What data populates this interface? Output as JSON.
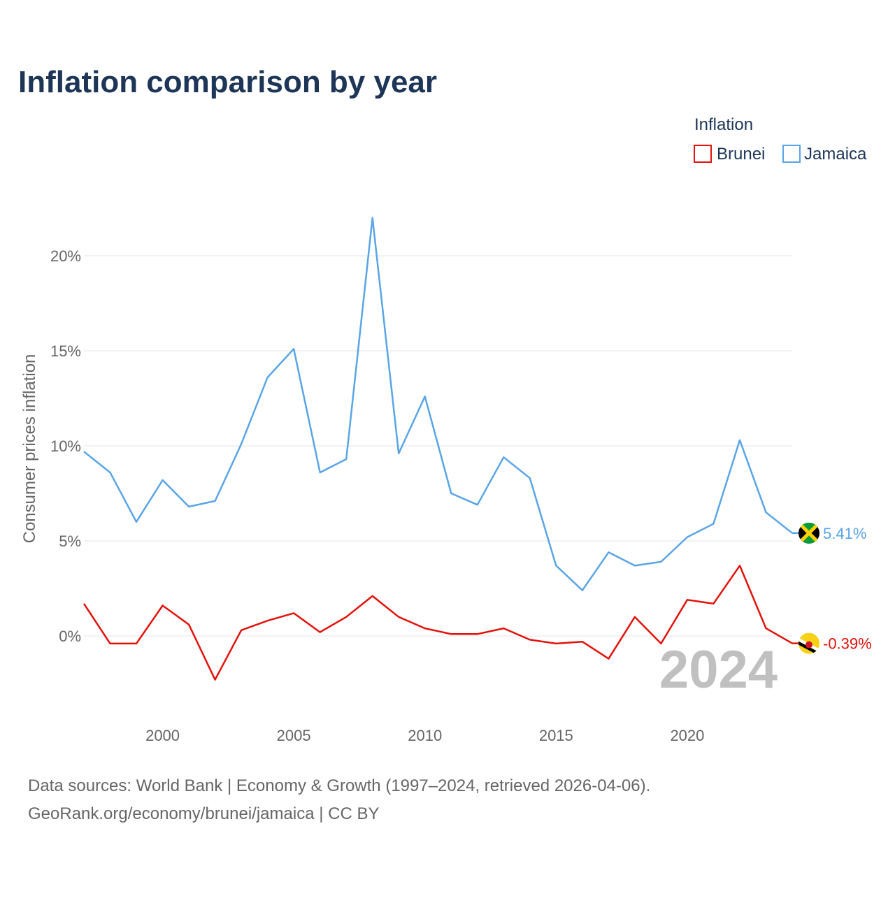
{
  "chart_data": {
    "type": "line",
    "title": "Inflation comparison by year",
    "ylabel": "Consumer prices inflation",
    "xlabel": "",
    "legend_title": "Inflation",
    "legend_position": "top-right",
    "x": [
      1997,
      1998,
      1999,
      2000,
      2001,
      2002,
      2003,
      2004,
      2005,
      2006,
      2007,
      2008,
      2009,
      2010,
      2011,
      2012,
      2013,
      2014,
      2015,
      2016,
      2017,
      2018,
      2019,
      2020,
      2021,
      2022,
      2023,
      2024
    ],
    "xlim": [
      1997,
      2024
    ],
    "xticks": [
      2000,
      2005,
      2010,
      2015,
      2020
    ],
    "xtick_labels": [
      "2000",
      "2005",
      "2010",
      "2015",
      "2020"
    ],
    "ylim": [
      -4,
      22
    ],
    "yticks": [
      0,
      5,
      10,
      15,
      20
    ],
    "ytick_labels": [
      "0%",
      "5%",
      "10%",
      "15%",
      "20%"
    ],
    "grid": true,
    "series": [
      {
        "name": "Brunei",
        "color": "#e3120b",
        "values": [
          1.7,
          -0.4,
          -0.4,
          1.6,
          0.6,
          -2.3,
          0.3,
          0.8,
          1.2,
          0.2,
          1.0,
          2.1,
          1.0,
          0.4,
          0.1,
          0.1,
          0.4,
          -0.2,
          -0.4,
          -0.3,
          -1.2,
          1.0,
          -0.4,
          1.9,
          1.7,
          3.7,
          0.4,
          -0.39
        ],
        "end_label": "-0.39%",
        "icon": "brunei-flag-icon"
      },
      {
        "name": "Jamaica",
        "color": "#5aa5e6",
        "values": [
          9.7,
          8.6,
          6.0,
          8.2,
          6.8,
          7.1,
          10.1,
          13.6,
          15.1,
          8.6,
          9.3,
          22.0,
          9.6,
          12.6,
          7.5,
          6.9,
          9.4,
          8.3,
          3.7,
          2.4,
          4.4,
          3.7,
          3.9,
          5.2,
          5.9,
          10.3,
          6.5,
          5.41
        ],
        "end_label": "5.41%",
        "icon": "jamaica-flag-icon"
      }
    ],
    "annotations": [
      {
        "text": "2024",
        "role": "current-year-watermark"
      }
    ]
  },
  "footer": {
    "line1": "Data sources: World Bank | Economy & Growth (1997–2024, retrieved 2026-04-06).",
    "line2": "GeoRank.org/economy/brunei/jamaica | CC BY"
  },
  "colors": {
    "title": "#1d3557",
    "axis_text": "#666666",
    "gridline": "#e6e6e6",
    "watermark": "#c0c0c0",
    "brunei_flag_yellow": "#f7d116",
    "jamaica_flag_green": "#009b3a",
    "jamaica_flag_yellow": "#fed100"
  }
}
